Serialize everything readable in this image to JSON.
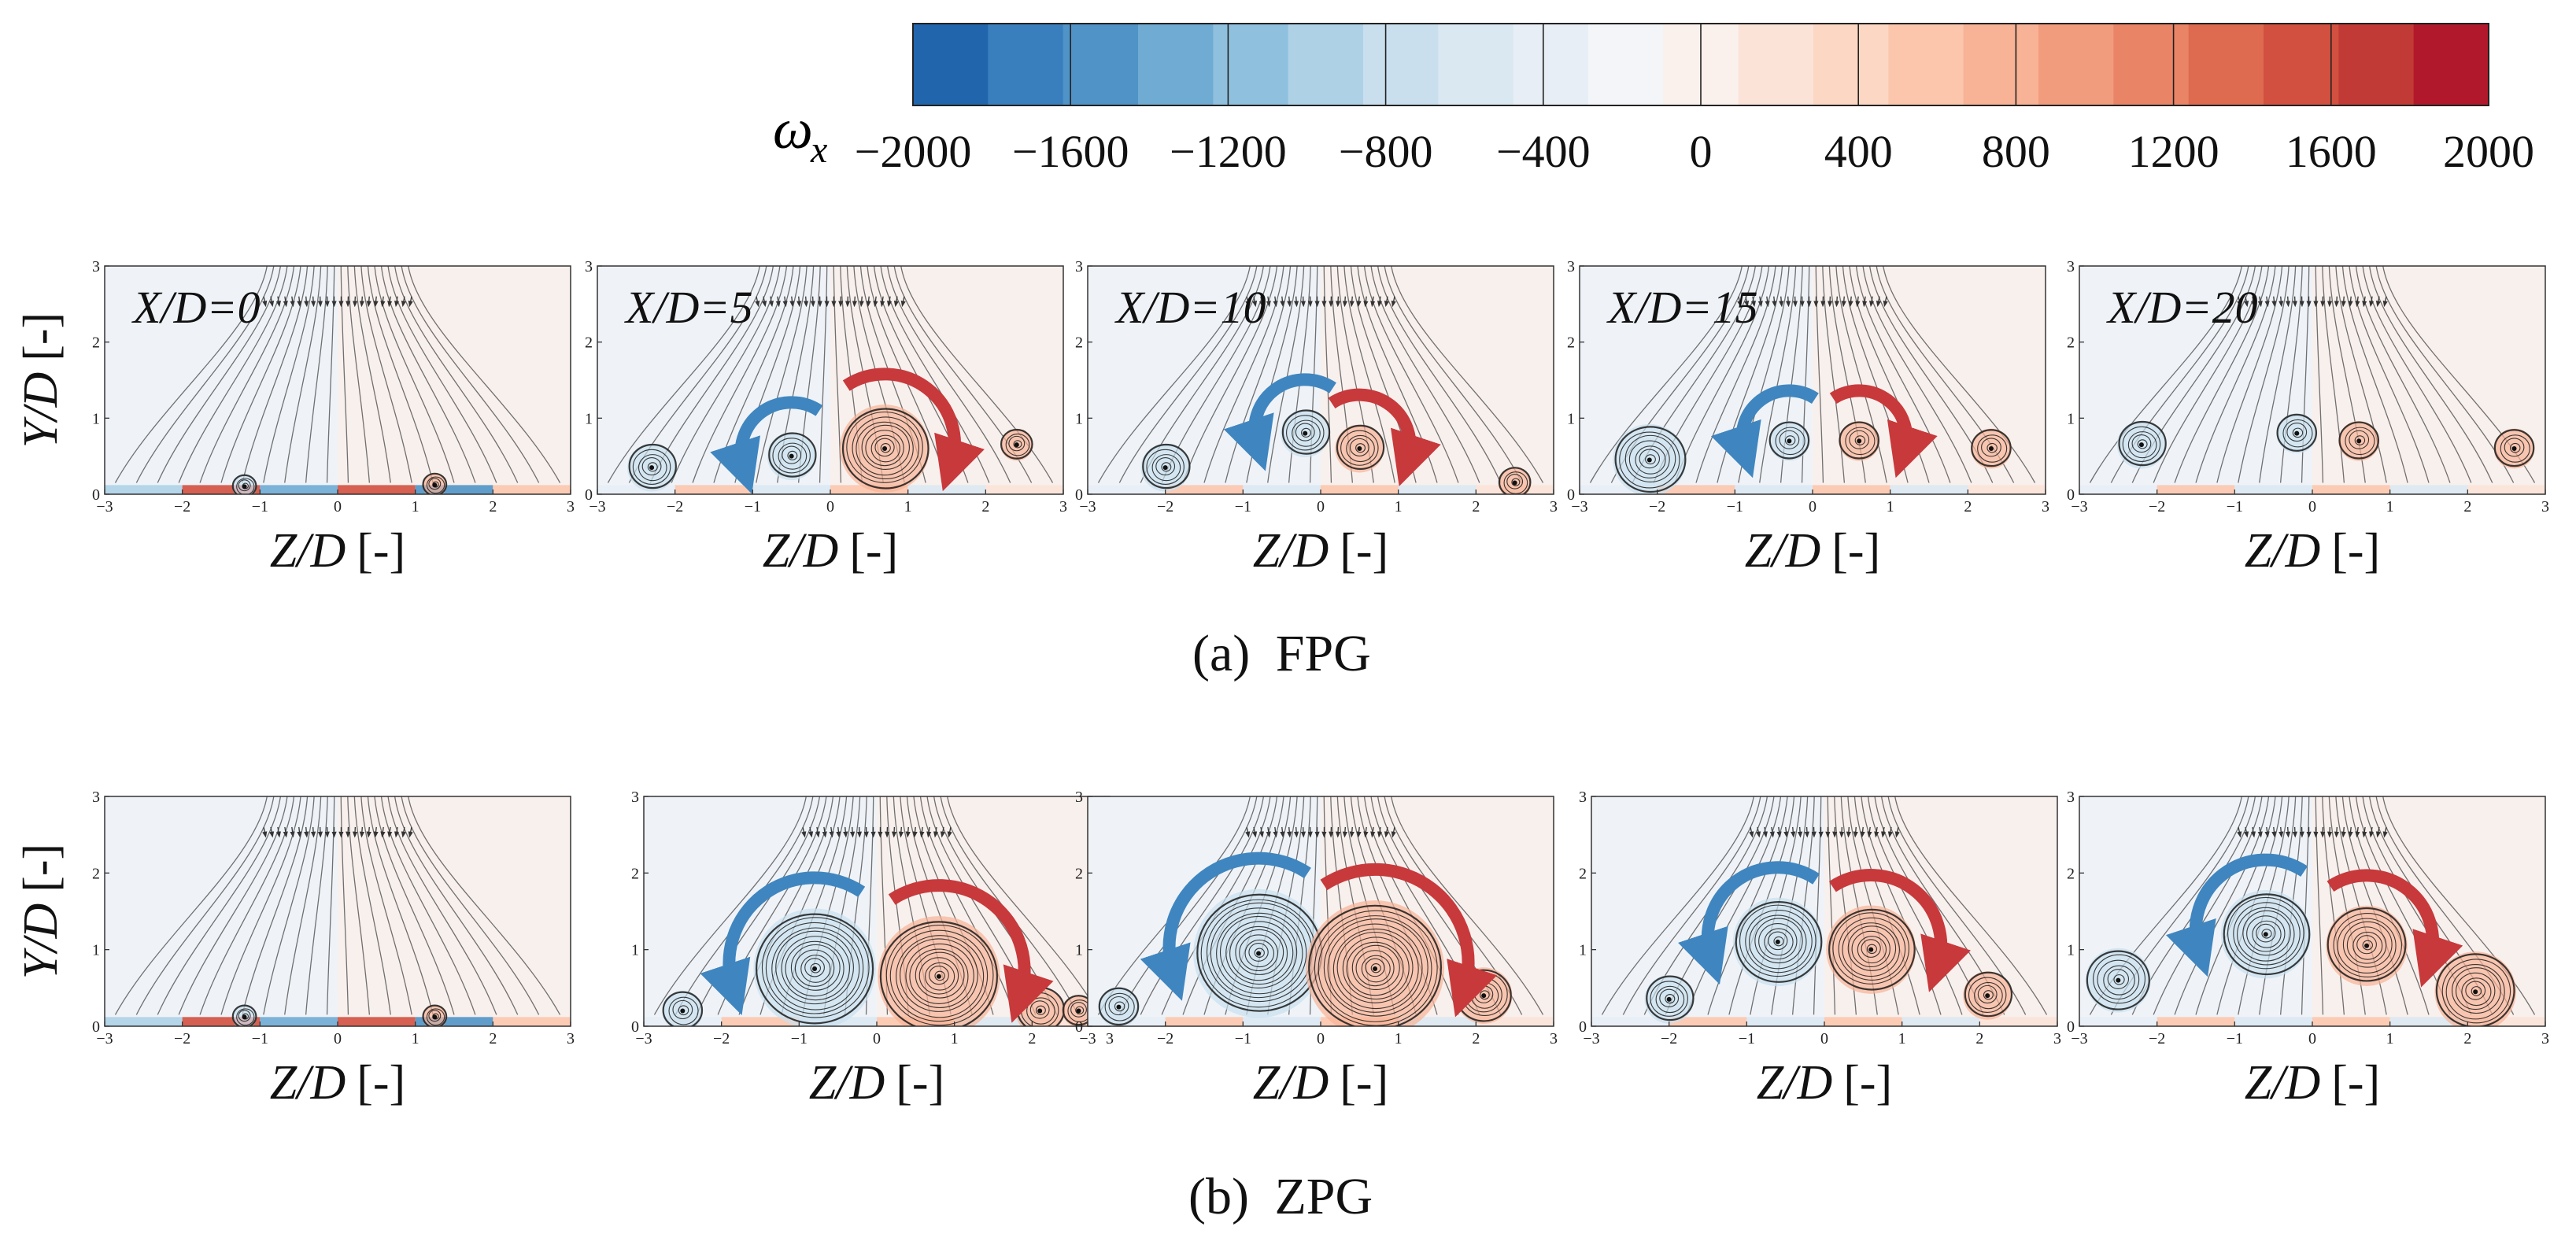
{
  "chart_data": {
    "type": "heatmap",
    "title": "",
    "quantity": "streamwise vorticity ω_x with in-plane streamlines",
    "colorbar": {
      "symbol": "ω",
      "subscript": "x",
      "ticks": [
        "−2000",
        "−1600",
        "−1200",
        "−800",
        "−400",
        "0",
        "400",
        "800",
        "1200",
        "1600",
        "2000"
      ],
      "range": [
        -2000,
        2000
      ],
      "colors": [
        "#2166ac",
        "#3a7fbd",
        "#4f93c7",
        "#6fabd3",
        "#8fc0de",
        "#aed1e6",
        "#c9dfee",
        "#dae8f2",
        "#e8eef5",
        "#f3f5f8",
        "#fbf1ec",
        "#fbe3d8",
        "#fcd7c4",
        "#fcc6ad",
        "#f8b295",
        "#f29c7e",
        "#ea8466",
        "#de6a50",
        "#d1503f",
        "#c23a35",
        "#b2182b"
      ]
    },
    "xlabel": "Z/D",
    "ylabel": "Y/D",
    "unit": "[-]",
    "xlim": [
      -3,
      3
    ],
    "ylim": [
      0,
      3
    ],
    "xticks": [
      "−3",
      "−2",
      "−1",
      "0",
      "1",
      "2",
      "3"
    ],
    "yticks": [
      "0",
      "1",
      "2",
      "3"
    ],
    "rows": [
      {
        "caption_letter": "(a)",
        "caption_text": "FPG",
        "panels": [
          {
            "label": "X/D=0",
            "station": 0,
            "vortices": [
              {
                "z": -1.2,
                "y": 0.1,
                "r": 0.15,
                "sign": -1
              },
              {
                "z": 1.25,
                "y": 0.12,
                "r": 0.15,
                "sign": 1
              }
            ],
            "arrows": []
          },
          {
            "label": "X/D=5",
            "station": 5,
            "vortices": [
              {
                "z": -2.3,
                "y": 0.35,
                "r": 0.3,
                "sign": -1
              },
              {
                "z": -0.5,
                "y": 0.5,
                "r": 0.3,
                "sign": -1
              },
              {
                "z": 0.7,
                "y": 0.6,
                "r": 0.55,
                "sign": 1
              },
              {
                "z": 2.4,
                "y": 0.65,
                "r": 0.2,
                "sign": 1
              }
            ],
            "arrows": [
              "blue",
              "red"
            ]
          },
          {
            "label": "X/D=10",
            "station": 10,
            "vortices": [
              {
                "z": -2.0,
                "y": 0.35,
                "r": 0.3,
                "sign": -1
              },
              {
                "z": -0.2,
                "y": 0.8,
                "r": 0.3,
                "sign": -1
              },
              {
                "z": 0.5,
                "y": 0.6,
                "r": 0.3,
                "sign": 1
              },
              {
                "z": 2.5,
                "y": 0.15,
                "r": 0.2,
                "sign": 1
              }
            ],
            "arrows": [
              "blue",
              "red"
            ]
          },
          {
            "label": "X/D=15",
            "station": 15,
            "vortices": [
              {
                "z": -2.1,
                "y": 0.45,
                "r": 0.45,
                "sign": -1
              },
              {
                "z": -0.3,
                "y": 0.7,
                "r": 0.25,
                "sign": -1
              },
              {
                "z": 0.6,
                "y": 0.7,
                "r": 0.25,
                "sign": 1
              },
              {
                "z": 2.3,
                "y": 0.6,
                "r": 0.25,
                "sign": 1
              }
            ],
            "arrows": [
              "blue",
              "red"
            ]
          },
          {
            "label": "X/D=20",
            "station": 20,
            "vortices": [
              {
                "z": -2.2,
                "y": 0.65,
                "r": 0.3,
                "sign": -1
              },
              {
                "z": -0.2,
                "y": 0.8,
                "r": 0.25,
                "sign": -1
              },
              {
                "z": 0.6,
                "y": 0.7,
                "r": 0.25,
                "sign": 1
              },
              {
                "z": 2.6,
                "y": 0.6,
                "r": 0.25,
                "sign": 1
              }
            ],
            "arrows": []
          }
        ]
      },
      {
        "caption_letter": "(b)",
        "caption_text": "ZPG",
        "panels": [
          {
            "label": "",
            "station": 0,
            "vortices": [
              {
                "z": -1.2,
                "y": 0.12,
                "r": 0.15,
                "sign": -1
              },
              {
                "z": 1.25,
                "y": 0.12,
                "r": 0.15,
                "sign": 1
              }
            ],
            "arrows": []
          },
          {
            "label": "",
            "station": 5,
            "vortices": [
              {
                "z": -0.8,
                "y": 0.75,
                "r": 0.75,
                "sign": -1
              },
              {
                "z": 0.8,
                "y": 0.65,
                "r": 0.75,
                "sign": 1
              },
              {
                "z": -2.5,
                "y": 0.2,
                "r": 0.25,
                "sign": -1
              },
              {
                "z": 2.1,
                "y": 0.2,
                "r": 0.3,
                "sign": 1
              },
              {
                "z": 2.6,
                "y": 0.2,
                "r": 0.2,
                "sign": 1
              }
            ],
            "arrows": [
              "blue",
              "red"
            ]
          },
          {
            "label": "",
            "station": 10,
            "vortices": [
              {
                "z": -0.8,
                "y": 0.95,
                "r": 0.8,
                "sign": -1
              },
              {
                "z": 0.7,
                "y": 0.75,
                "r": 0.85,
                "sign": 1
              },
              {
                "z": -2.6,
                "y": 0.25,
                "r": 0.25,
                "sign": -1
              },
              {
                "z": 2.1,
                "y": 0.4,
                "r": 0.35,
                "sign": 1
              }
            ],
            "arrows": [
              "blue",
              "red"
            ]
          },
          {
            "label": "",
            "station": 15,
            "vortices": [
              {
                "z": -0.6,
                "y": 1.1,
                "r": 0.55,
                "sign": -1
              },
              {
                "z": 0.6,
                "y": 1.0,
                "r": 0.55,
                "sign": 1
              },
              {
                "z": -2.0,
                "y": 0.35,
                "r": 0.3,
                "sign": -1
              },
              {
                "z": 2.1,
                "y": 0.4,
                "r": 0.3,
                "sign": 1
              }
            ],
            "arrows": [
              "blue",
              "red"
            ]
          },
          {
            "label": "",
            "station": 20,
            "vortices": [
              {
                "z": -0.6,
                "y": 1.2,
                "r": 0.55,
                "sign": -1
              },
              {
                "z": 0.7,
                "y": 1.05,
                "r": 0.5,
                "sign": 1
              },
              {
                "z": -2.5,
                "y": 0.6,
                "r": 0.4,
                "sign": -1
              },
              {
                "z": 2.1,
                "y": 0.45,
                "r": 0.5,
                "sign": 1
              }
            ],
            "arrows": [
              "blue",
              "red"
            ]
          }
        ]
      }
    ]
  }
}
